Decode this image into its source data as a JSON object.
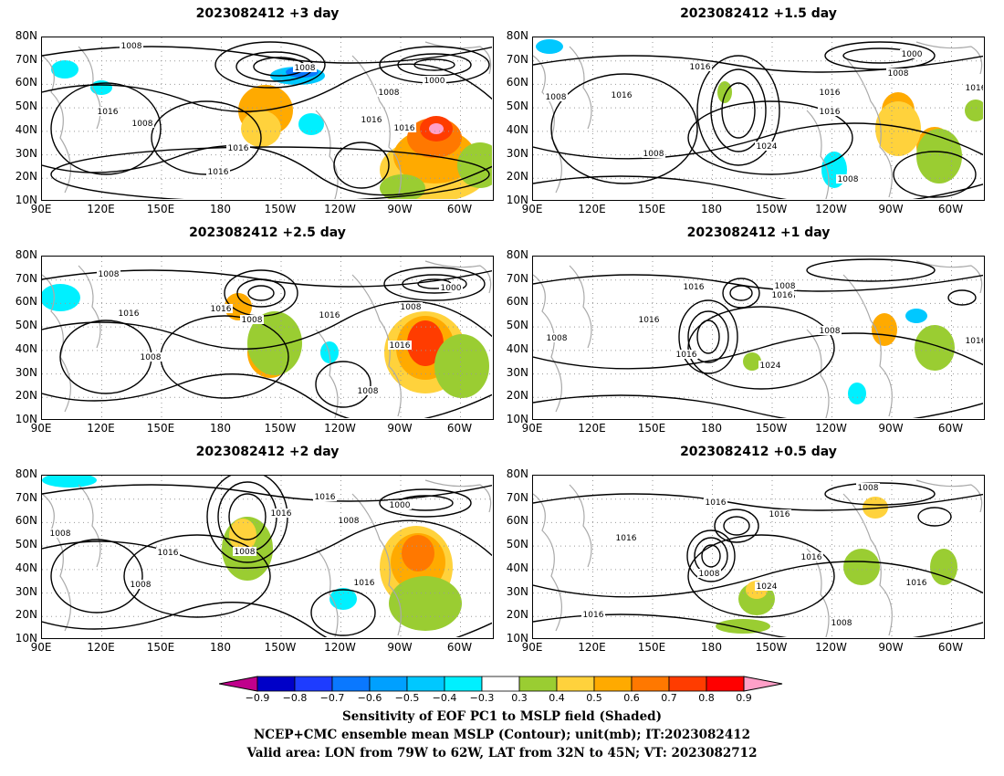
{
  "panels": [
    {
      "title": "2023082412 +3 day",
      "labels": [
        "1008",
        "1008",
        "1016",
        "1008",
        "1016",
        "1016",
        "1000",
        "1008",
        "1016",
        "1016"
      ]
    },
    {
      "title": "2023082412 +1.5 day",
      "labels": [
        "1000",
        "1008",
        "1016",
        "1016",
        "1008",
        "1016",
        "1016",
        "1024",
        "1008",
        "1008",
        "1016"
      ]
    },
    {
      "title": "2023082412 +2.5 day",
      "labels": [
        "1008",
        "1016",
        "1016",
        "1008",
        "1016",
        "1000",
        "1008",
        "1008",
        "1016",
        "1008"
      ]
    },
    {
      "title": "2023082412 +1 day",
      "labels": [
        "1008",
        "1016",
        "1008",
        "1016",
        "1016",
        "1016",
        "1008",
        "1024",
        "1016",
        "1016"
      ]
    },
    {
      "title": "2023082412 +2 day",
      "labels": [
        "1016",
        "1000",
        "1008",
        "1016",
        "1008",
        "1016",
        "1008",
        "1016",
        "1008"
      ]
    },
    {
      "title": "2023082412 +0.5 day",
      "labels": [
        "1008",
        "1016",
        "1016",
        "1016",
        "1016",
        "1008",
        "1024",
        "1016",
        "1008",
        "1016"
      ]
    }
  ],
  "axes": {
    "lat_labels": [
      "80N",
      "70N",
      "60N",
      "50N",
      "40N",
      "30N",
      "20N",
      "10N"
    ],
    "lon_labels": [
      "90E",
      "120E",
      "150E",
      "180",
      "150W",
      "120W",
      "90W",
      "60W"
    ]
  },
  "colorbar": {
    "tick_labels": [
      "−0.9",
      "−0.8",
      "−0.7",
      "−0.6",
      "−0.5",
      "−0.4",
      "−0.3",
      "0.3",
      "0.4",
      "0.5",
      "0.6",
      "0.7",
      "0.8",
      "0.9"
    ],
    "colors": [
      "#c0008c",
      "#0000c8",
      "#1e3cff",
      "#0a78ff",
      "#00a0ff",
      "#00c8ff",
      "#00f0ff",
      "#ffffff",
      "#9acd32",
      "#ffd23c",
      "#ffaa00",
      "#ff7800",
      "#ff3c00",
      "#ff0000",
      "#ffa0c8"
    ]
  },
  "footer": {
    "line1": "Sensitivity of EOF PC1 to MSLP field (Shaded)",
    "line2": "NCEP+CMC ensemble mean MSLP (Contour); unit(mb); IT:2023082412",
    "line3": "Valid area: LON from 79W to 62W, LAT from 32N to 45N; VT: 2023082712"
  }
}
